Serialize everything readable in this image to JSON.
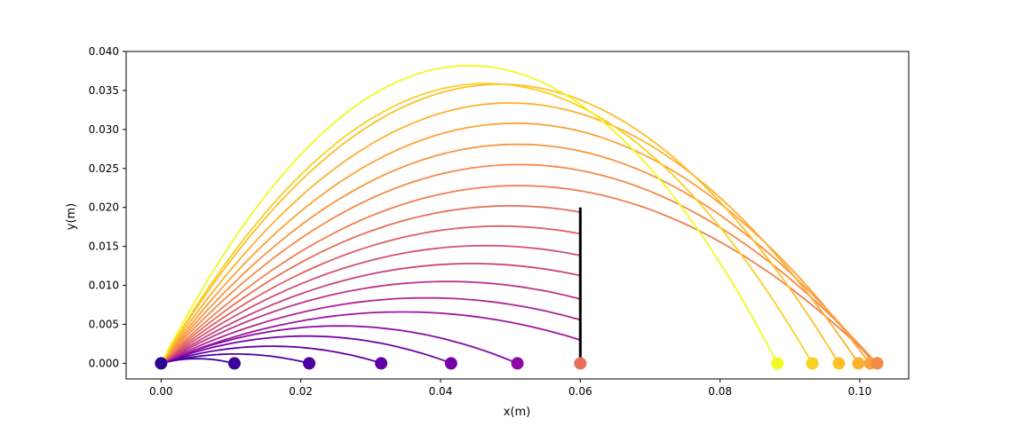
{
  "chart_data": {
    "type": "line",
    "title": "",
    "xlabel": "x(m)",
    "ylabel": "y(m)",
    "xlim": [
      -0.005,
      0.107
    ],
    "ylim": [
      -0.002,
      0.04
    ],
    "xticks": [
      "0.00",
      "0.02",
      "0.04",
      "0.06",
      "0.08",
      "0.10"
    ],
    "xtick_values": [
      0,
      0.02,
      0.04,
      0.06,
      0.08,
      0.1
    ],
    "yticks": [
      "0.000",
      "0.005",
      "0.010",
      "0.015",
      "0.020",
      "0.025",
      "0.030",
      "0.035",
      "0.040"
    ],
    "ytick_values": [
      0,
      0.005,
      0.01,
      0.015,
      0.02,
      0.025,
      0.03,
      0.035,
      0.04
    ],
    "grid": false,
    "legend": "none",
    "colormap": "plasma",
    "wall": {
      "x": 0.06,
      "y_bottom": 0.0,
      "y_top": 0.02,
      "color": "#000000"
    },
    "trajectories_blocked": [
      {
        "range": 0.0105,
        "peak_x": 0.0052,
        "peak_y": 0.0006,
        "y_at_wall": null,
        "color": "#3a049a"
      },
      {
        "range": 0.0212,
        "peak_x": 0.0106,
        "peak_y": 0.0012,
        "y_at_wall": null,
        "color": "#4c02a1"
      },
      {
        "range": 0.0315,
        "peak_x": 0.0158,
        "peak_y": 0.0022,
        "y_at_wall": null,
        "color": "#6200a4"
      },
      {
        "range": 0.0415,
        "peak_x": 0.0208,
        "peak_y": 0.0035,
        "y_at_wall": null,
        "color": "#7401a8"
      },
      {
        "range": 0.051,
        "peak_x": 0.0255,
        "peak_y": 0.0048,
        "y_at_wall": null,
        "color": "#8b0aa5"
      },
      {
        "range": null,
        "peak_x": 0.0345,
        "peak_y": 0.0066,
        "y_at_wall": 0.0029,
        "color": "#9c179e"
      },
      {
        "range": null,
        "peak_x": 0.038,
        "peak_y": 0.0084,
        "y_at_wall": 0.0056,
        "color": "#ac2694"
      },
      {
        "range": null,
        "peak_x": 0.041,
        "peak_y": 0.0105,
        "y_at_wall": 0.0083,
        "color": "#bb3488"
      },
      {
        "range": null,
        "peak_x": 0.0445,
        "peak_y": 0.0128,
        "y_at_wall": 0.0111,
        "color": "#c7427c"
      },
      {
        "range": null,
        "peak_x": 0.0465,
        "peak_y": 0.0151,
        "y_at_wall": 0.0139,
        "color": "#d35171"
      },
      {
        "range": null,
        "peak_x": 0.0485,
        "peak_y": 0.0176,
        "y_at_wall": 0.0167,
        "color": "#dd5e66"
      },
      {
        "range": null,
        "peak_x": 0.05,
        "peak_y": 0.0202,
        "y_at_wall": 0.0196,
        "color": "#e76f5a"
      }
    ],
    "trajectories_clearing": [
      {
        "range": 0.1025,
        "peak_x": 0.0512,
        "peak_y": 0.0228,
        "color": "#ef7e50"
      },
      {
        "range": 0.1025,
        "peak_x": 0.0512,
        "peak_y": 0.0255,
        "color": "#f38a48"
      },
      {
        "range": 0.102,
        "peak_x": 0.051,
        "peak_y": 0.0281,
        "color": "#f89540"
      },
      {
        "range": 0.1015,
        "peak_x": 0.0507,
        "peak_y": 0.0308,
        "color": "#fba238"
      },
      {
        "range": 0.0998,
        "peak_x": 0.0499,
        "peak_y": 0.0334,
        "color": "#fdb130"
      },
      {
        "range": 0.097,
        "peak_x": 0.0485,
        "peak_y": 0.0358,
        "color": "#fdc02a"
      },
      {
        "range": 0.0932,
        "peak_x": 0.0466,
        "peak_y": 0.0359,
        "color": "#f8d124"
      },
      {
        "range": 0.0882,
        "peak_x": 0.0441,
        "peak_y": 0.0382,
        "color": "#f0f921"
      }
    ],
    "landing_points": [
      {
        "x": 0.0,
        "y": 0.0,
        "color": "#2a0593"
      },
      {
        "x": 0.0105,
        "y": 0.0,
        "color": "#3a049a"
      },
      {
        "x": 0.0212,
        "y": 0.0,
        "color": "#4c02a1"
      },
      {
        "x": 0.0315,
        "y": 0.0,
        "color": "#6200a4"
      },
      {
        "x": 0.0415,
        "y": 0.0,
        "color": "#7401a8"
      },
      {
        "x": 0.051,
        "y": 0.0,
        "color": "#8b0aa5"
      },
      {
        "x": 0.06,
        "y": 0.0,
        "color": "#e76f5a"
      },
      {
        "x": 0.0882,
        "y": 0.0,
        "color": "#f0f921"
      },
      {
        "x": 0.0932,
        "y": 0.0,
        "color": "#f8d124"
      },
      {
        "x": 0.097,
        "y": 0.0,
        "color": "#fdc02a"
      },
      {
        "x": 0.0998,
        "y": 0.0,
        "color": "#fdb130"
      },
      {
        "x": 0.1015,
        "y": 0.0,
        "color": "#fba238"
      },
      {
        "x": 0.1025,
        "y": 0.0,
        "color": "#f38a48"
      }
    ]
  }
}
